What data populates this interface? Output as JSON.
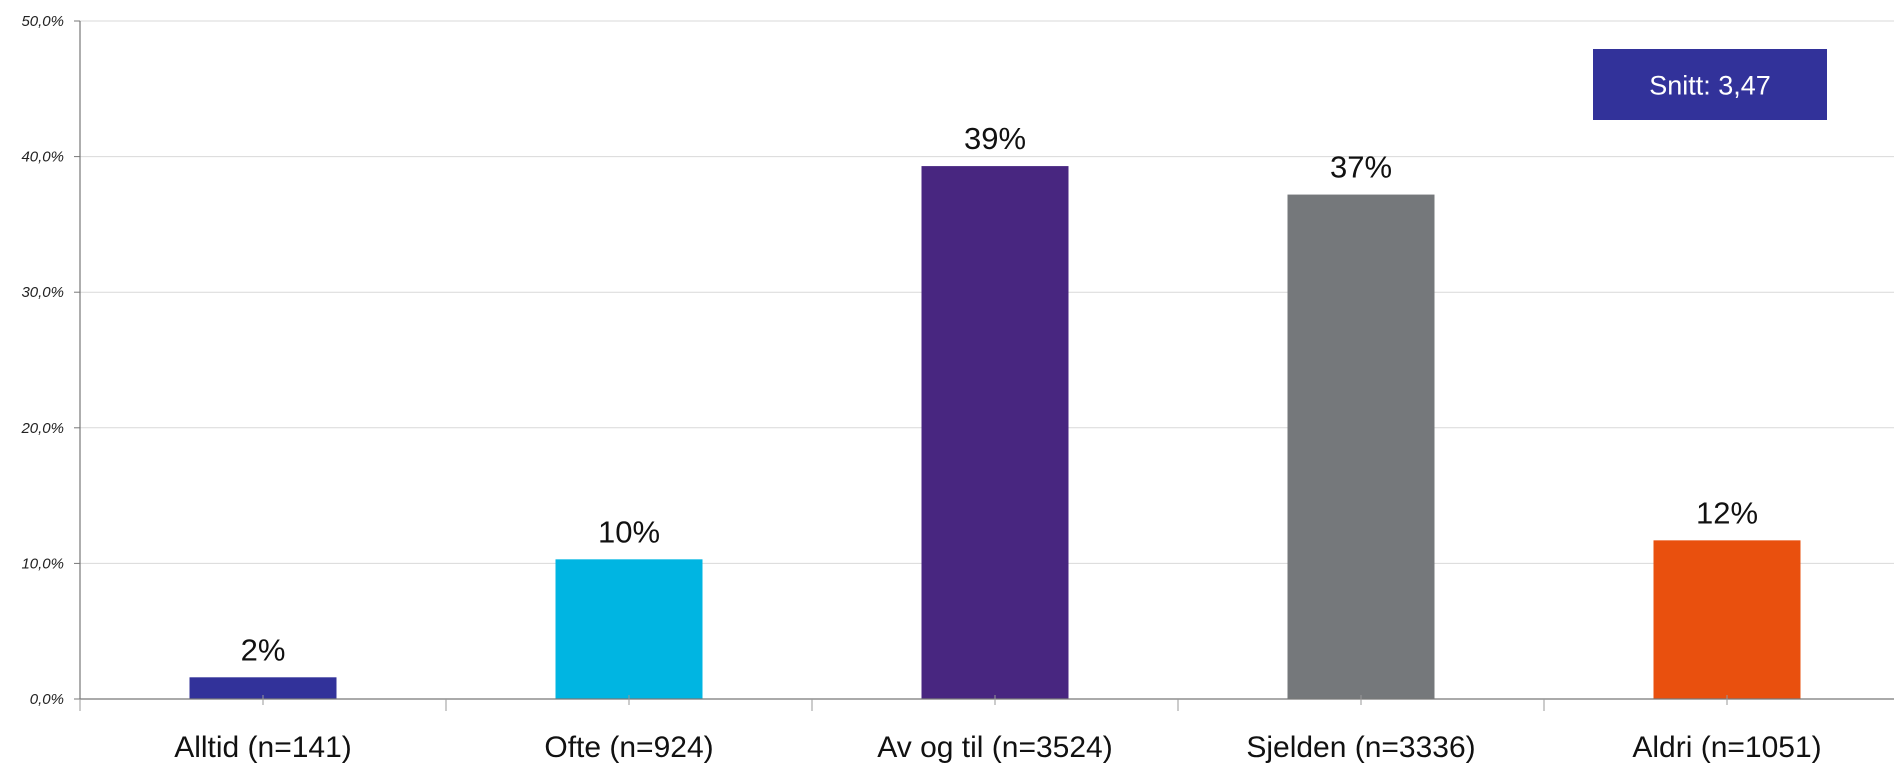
{
  "chart_data": {
    "type": "bar",
    "title": "",
    "xlabel": "",
    "ylabel": "",
    "categories": [
      "Alltid (n=141)",
      "Ofte (n=924)",
      "Av og til (n=3524)",
      "Sjelden (n=3336)",
      "Aldri (n=1051)"
    ],
    "values": [
      1.6,
      10.3,
      39.3,
      37.2,
      11.7
    ],
    "data_labels": [
      "2%",
      "10%",
      "39%",
      "37%",
      "12%"
    ],
    "colors": [
      "#32329a",
      "#00b5e2",
      "#482680",
      "#75787b",
      "#e9500e"
    ],
    "ylim": [
      0,
      50
    ],
    "yticks": [
      0,
      10,
      20,
      30,
      40,
      50
    ],
    "ytick_labels": [
      "0,0%",
      "10,0%",
      "20,0%",
      "30,0%",
      "40,0%",
      "50,0%"
    ],
    "grid": true,
    "legend": "none",
    "annotation": {
      "text": "Snitt: 3,47",
      "color": "#32329a",
      "position": "top-right"
    }
  }
}
